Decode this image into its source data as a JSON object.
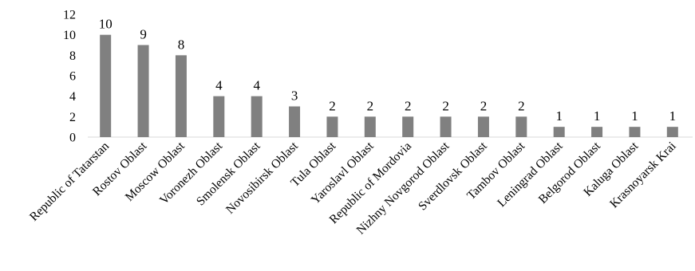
{
  "chart_data": {
    "type": "bar",
    "categories": [
      "Republic of Tatarstan",
      "Rostov Oblast",
      "Moscow Oblast",
      "Voronezh Oblast",
      "Smolensk Oblast",
      "Novosibirsk Oblast",
      "Tula Oblast",
      "Yaroslavl Oblast",
      "Republic of Mordovia",
      "Nizhny Novgorod Oblast",
      "Sverdlovsk Oblast",
      "Tambov Oblast",
      "Leningrad Oblast",
      "Belgorod Oblast",
      "Kaluga Oblast",
      "Krasnoyarsk Krai"
    ],
    "values": [
      10,
      9,
      8,
      4,
      4,
      3,
      2,
      2,
      2,
      2,
      2,
      2,
      1,
      1,
      1,
      1
    ],
    "yticks": [
      "0",
      "2",
      "4",
      "6",
      "8",
      "10",
      "12"
    ],
    "ylim": [
      0,
      12
    ],
    "title": "",
    "xlabel": "",
    "ylabel": "",
    "grid": false,
    "legend": "none",
    "data_labels": true,
    "bar_color": "#808080",
    "axis_color": "#d9d9d9"
  }
}
